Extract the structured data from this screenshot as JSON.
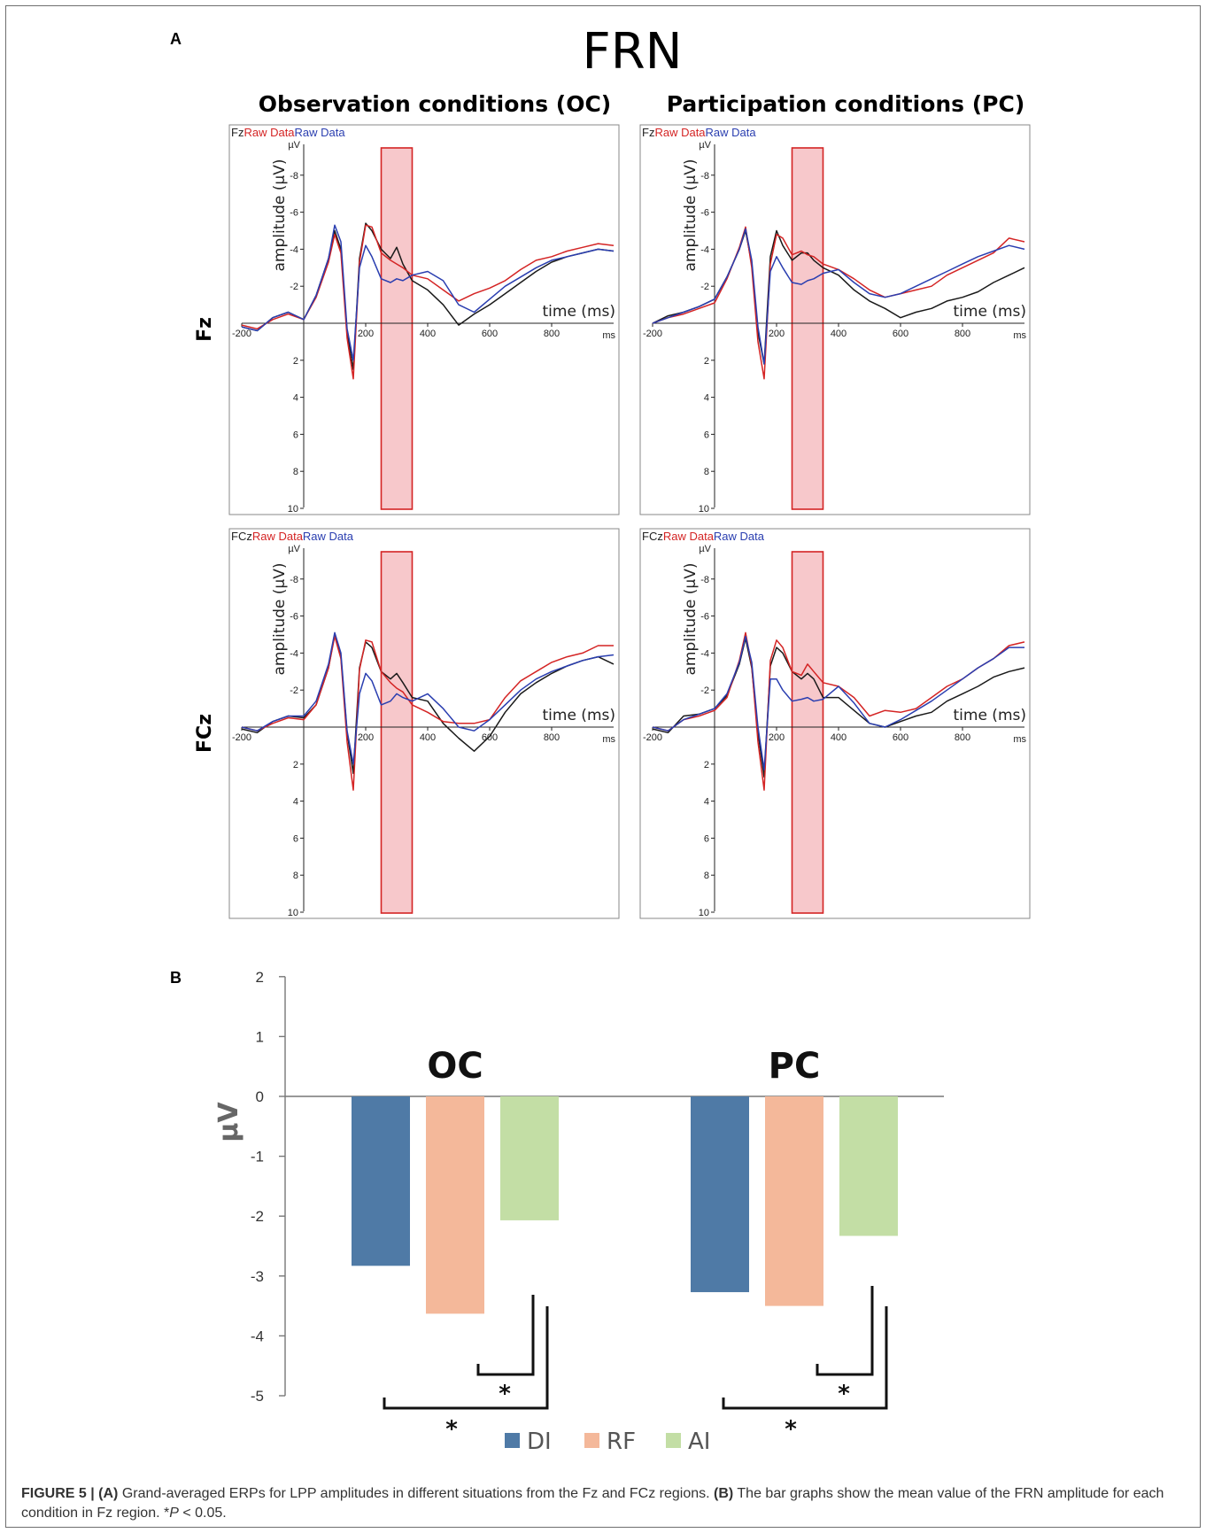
{
  "panel_a_label": "A",
  "panel_b_label": "B",
  "figure_title": "FRN",
  "columns": [
    "Observation conditions (OC)",
    "Participation conditions (PC)"
  ],
  "rows": [
    "Fz",
    "FCz"
  ],
  "caption": {
    "figure_label": "FIGURE 5 |",
    "panel_a": "(A)",
    "text_a": "Grand-averaged ERPs for LPP amplitudes in different situations from the Fz and FCz regions.",
    "panel_b": "(B)",
    "text_b": "The bar graphs show the mean value of the FRN amplitude for each condition in Fz region. *",
    "p_symbol": "P",
    "p_text": "< 0.05."
  },
  "colors": {
    "DI": "#4f7aa6",
    "RF": "#f4b89a",
    "AI": "#c3deA5",
    "erp_black": "#1a1a1a",
    "erp_red": "#d42424",
    "erp_blue": "#2a3eb0",
    "window_fill": "#f7c8cb",
    "window_stroke": "#d42424"
  },
  "chart_data": [
    {
      "type": "line",
      "panel": "A-Fz-OC",
      "header": {
        "channel": "Fz",
        "series_a": "Raw Data",
        "series_b": "Raw Data"
      },
      "y_unit": "µV",
      "ylabel": "amplitude (µV)",
      "xlabel": "time (ms)",
      "x_unit": "ms",
      "x_ticks": [
        -200,
        200,
        400,
        600,
        800
      ],
      "y_ticks": [
        -8,
        -6,
        -4,
        -2,
        2,
        4,
        6,
        8,
        10
      ],
      "xlim": [
        -200,
        1000
      ],
      "ylim": [
        -10,
        10
      ],
      "y_inverted": true,
      "highlight_window": [
        250,
        350
      ],
      "series": [
        {
          "color_key": "erp_black",
          "x": [
            -200,
            -150,
            -100,
            -50,
            0,
            40,
            80,
            100,
            120,
            140,
            160,
            180,
            200,
            220,
            250,
            280,
            300,
            320,
            350,
            400,
            450,
            500,
            550,
            600,
            650,
            700,
            750,
            800,
            850,
            900,
            950,
            1000
          ],
          "y": [
            0.2,
            0.4,
            -0.3,
            -0.6,
            -0.2,
            -1.5,
            -3.5,
            -5.0,
            -4.0,
            0.5,
            2.5,
            -3.5,
            -5.4,
            -5.0,
            -4.0,
            -3.5,
            -4.1,
            -3.2,
            -2.3,
            -1.8,
            -1.0,
            0.1,
            -0.5,
            -1.0,
            -1.6,
            -2.2,
            -2.8,
            -3.3,
            -3.6,
            -3.8,
            -4.0,
            -3.9
          ]
        },
        {
          "color_key": "erp_red",
          "x": [
            -200,
            -150,
            -100,
            -50,
            0,
            40,
            80,
            100,
            120,
            140,
            160,
            180,
            200,
            220,
            250,
            280,
            300,
            320,
            350,
            400,
            450,
            500,
            550,
            600,
            650,
            700,
            750,
            800,
            850,
            900,
            950,
            1000
          ],
          "y": [
            0.1,
            0.3,
            -0.2,
            -0.5,
            -0.2,
            -1.4,
            -3.3,
            -4.8,
            -3.8,
            0.8,
            3.0,
            -3.3,
            -5.3,
            -5.2,
            -3.8,
            -3.4,
            -3.2,
            -3.0,
            -2.6,
            -2.4,
            -1.8,
            -1.2,
            -1.6,
            -1.9,
            -2.3,
            -2.9,
            -3.4,
            -3.6,
            -3.9,
            -4.1,
            -4.3,
            -4.2
          ]
        },
        {
          "color_key": "erp_blue",
          "x": [
            -200,
            -150,
            -100,
            -50,
            0,
            40,
            80,
            100,
            120,
            140,
            160,
            180,
            200,
            220,
            250,
            280,
            300,
            320,
            350,
            400,
            450,
            500,
            550,
            600,
            650,
            700,
            750,
            800,
            850,
            900,
            950,
            1000
          ],
          "y": [
            0.2,
            0.4,
            -0.3,
            -0.6,
            -0.2,
            -1.5,
            -3.5,
            -5.3,
            -4.4,
            0.3,
            2.0,
            -3.0,
            -4.2,
            -3.6,
            -2.4,
            -2.2,
            -2.4,
            -2.3,
            -2.6,
            -2.8,
            -2.3,
            -1.0,
            -0.6,
            -1.3,
            -2.0,
            -2.5,
            -3.0,
            -3.4,
            -3.6,
            -3.8,
            -4.0,
            -3.9
          ]
        }
      ]
    },
    {
      "type": "line",
      "panel": "A-Fz-PC",
      "header": {
        "channel": "Fz",
        "series_a": "Raw Data",
        "series_b": "Raw Data"
      },
      "y_unit": "µV",
      "ylabel": "amplitude (µV)",
      "xlabel": "time (ms)",
      "x_unit": "ms",
      "x_ticks": [
        -200,
        200,
        400,
        600,
        800
      ],
      "y_ticks": [
        -8,
        -6,
        -4,
        -2,
        2,
        4,
        6,
        8,
        10
      ],
      "xlim": [
        -200,
        1000
      ],
      "ylim": [
        -10,
        10
      ],
      "y_inverted": true,
      "highlight_window": [
        250,
        350
      ],
      "series": [
        {
          "color_key": "erp_black",
          "x": [
            -200,
            -150,
            -100,
            -50,
            0,
            40,
            80,
            100,
            120,
            140,
            160,
            180,
            200,
            220,
            250,
            280,
            300,
            320,
            350,
            400,
            450,
            500,
            550,
            600,
            650,
            700,
            750,
            800,
            850,
            900,
            950,
            1000
          ],
          "y": [
            0.0,
            -0.4,
            -0.6,
            -0.9,
            -1.3,
            -2.5,
            -4.0,
            -5.0,
            -3.2,
            0.5,
            2.2,
            -3.6,
            -5.0,
            -4.2,
            -3.4,
            -3.8,
            -3.8,
            -3.4,
            -3.0,
            -2.6,
            -1.8,
            -1.2,
            -0.8,
            -0.3,
            -0.6,
            -0.8,
            -1.2,
            -1.4,
            -1.7,
            -2.2,
            -2.6,
            -3.0
          ]
        },
        {
          "color_key": "erp_red",
          "x": [
            -200,
            -150,
            -100,
            -50,
            0,
            40,
            80,
            100,
            120,
            140,
            160,
            180,
            200,
            220,
            250,
            280,
            300,
            320,
            350,
            400,
            450,
            500,
            550,
            600,
            650,
            700,
            750,
            800,
            850,
            900,
            950,
            1000
          ],
          "y": [
            0.0,
            -0.3,
            -0.5,
            -0.8,
            -1.1,
            -2.4,
            -4.1,
            -5.2,
            -3.0,
            1.0,
            3.0,
            -3.2,
            -4.8,
            -4.6,
            -3.7,
            -3.9,
            -3.7,
            -3.6,
            -3.2,
            -2.9,
            -2.4,
            -1.8,
            -1.4,
            -1.6,
            -1.8,
            -2.0,
            -2.6,
            -3.0,
            -3.4,
            -3.8,
            -4.6,
            -4.4
          ]
        },
        {
          "color_key": "erp_blue",
          "x": [
            -200,
            -150,
            -100,
            -50,
            0,
            40,
            80,
            100,
            120,
            140,
            160,
            180,
            200,
            220,
            250,
            280,
            300,
            320,
            350,
            400,
            450,
            500,
            550,
            600,
            650,
            700,
            750,
            800,
            850,
            900,
            950,
            1000
          ],
          "y": [
            0.0,
            -0.3,
            -0.6,
            -0.9,
            -1.3,
            -2.5,
            -4.0,
            -5.1,
            -3.4,
            0.2,
            2.2,
            -2.8,
            -3.6,
            -3.0,
            -2.2,
            -2.1,
            -2.3,
            -2.4,
            -2.7,
            -2.9,
            -2.2,
            -1.6,
            -1.4,
            -1.6,
            -2.0,
            -2.4,
            -2.8,
            -3.2,
            -3.6,
            -3.9,
            -4.2,
            -4.0
          ]
        }
      ]
    },
    {
      "type": "line",
      "panel": "A-FCz-OC",
      "header": {
        "channel": "FCz",
        "series_a": "Raw Data",
        "series_b": "Raw Data"
      },
      "y_unit": "µV",
      "ylabel": "amplitude (µV)",
      "xlabel": "time (ms)",
      "x_unit": "ms",
      "x_ticks": [
        -200,
        200,
        400,
        600,
        800
      ],
      "y_ticks": [
        -8,
        -6,
        -4,
        -2,
        2,
        4,
        6,
        8,
        10
      ],
      "xlim": [
        -200,
        1000
      ],
      "ylim": [
        -10,
        10
      ],
      "y_inverted": true,
      "highlight_window": [
        250,
        350
      ],
      "series": [
        {
          "color_key": "erp_black",
          "x": [
            -200,
            -150,
            -100,
            -50,
            0,
            40,
            80,
            100,
            120,
            140,
            160,
            180,
            200,
            220,
            250,
            280,
            300,
            320,
            350,
            400,
            450,
            500,
            550,
            600,
            650,
            700,
            750,
            800,
            850,
            900,
            950,
            1000
          ],
          "y": [
            0.1,
            0.3,
            -0.3,
            -0.6,
            -0.5,
            -1.2,
            -3.2,
            -5.0,
            -3.8,
            0.3,
            2.5,
            -3.2,
            -4.6,
            -4.3,
            -3.0,
            -2.6,
            -2.9,
            -2.4,
            -1.6,
            -1.4,
            -0.2,
            0.6,
            1.3,
            0.5,
            -0.8,
            -1.8,
            -2.4,
            -2.9,
            -3.3,
            -3.6,
            -3.8,
            -3.4
          ]
        },
        {
          "color_key": "erp_red",
          "x": [
            -200,
            -150,
            -100,
            -50,
            0,
            40,
            80,
            100,
            120,
            140,
            160,
            180,
            200,
            220,
            250,
            280,
            300,
            320,
            350,
            400,
            450,
            500,
            550,
            600,
            650,
            700,
            750,
            800,
            850,
            900,
            950,
            1000
          ],
          "y": [
            0.0,
            0.2,
            -0.2,
            -0.5,
            -0.4,
            -1.2,
            -3.2,
            -4.9,
            -3.7,
            0.8,
            3.4,
            -3.1,
            -4.7,
            -4.6,
            -3.0,
            -2.4,
            -2.1,
            -1.9,
            -1.2,
            -0.8,
            -0.3,
            -0.2,
            -0.2,
            -0.4,
            -1.6,
            -2.5,
            -3.0,
            -3.5,
            -3.8,
            -4.0,
            -4.4,
            -4.4
          ]
        },
        {
          "color_key": "erp_blue",
          "x": [
            -200,
            -150,
            -100,
            -50,
            0,
            40,
            80,
            100,
            120,
            140,
            160,
            180,
            200,
            220,
            250,
            280,
            300,
            320,
            350,
            400,
            450,
            500,
            550,
            600,
            650,
            700,
            750,
            800,
            850,
            900,
            950,
            1000
          ],
          "y": [
            0.0,
            0.2,
            -0.3,
            -0.6,
            -0.6,
            -1.4,
            -3.4,
            -5.1,
            -4.0,
            0.2,
            2.0,
            -1.8,
            -2.9,
            -2.5,
            -1.2,
            -1.4,
            -1.8,
            -1.6,
            -1.4,
            -1.8,
            -1.0,
            0.0,
            0.2,
            -0.4,
            -1.2,
            -2.0,
            -2.6,
            -3.0,
            -3.3,
            -3.6,
            -3.8,
            -3.9
          ]
        }
      ]
    },
    {
      "type": "line",
      "panel": "A-FCz-PC",
      "header": {
        "channel": "FCz",
        "series_a": "Raw Data",
        "series_b": "Raw Data"
      },
      "y_unit": "µV",
      "ylabel": "amplitude (µV)",
      "xlabel": "time (ms)",
      "x_unit": "ms",
      "x_ticks": [
        -200,
        200,
        400,
        600,
        800
      ],
      "y_ticks": [
        -8,
        -6,
        -4,
        -2,
        2,
        4,
        6,
        8,
        10
      ],
      "xlim": [
        -200,
        1000
      ],
      "ylim": [
        -10,
        10
      ],
      "y_inverted": true,
      "highlight_window": [
        250,
        350
      ],
      "series": [
        {
          "color_key": "erp_black",
          "x": [
            -200,
            -150,
            -100,
            -50,
            0,
            40,
            80,
            100,
            120,
            140,
            160,
            180,
            200,
            220,
            250,
            280,
            300,
            320,
            350,
            400,
            450,
            500,
            550,
            600,
            650,
            700,
            750,
            800,
            850,
            900,
            950,
            1000
          ],
          "y": [
            0.1,
            0.3,
            -0.6,
            -0.7,
            -1.0,
            -1.7,
            -3.4,
            -4.8,
            -3.2,
            0.3,
            2.7,
            -3.3,
            -4.3,
            -4.0,
            -3.0,
            -2.6,
            -2.9,
            -2.6,
            -1.6,
            -1.6,
            -0.9,
            -0.2,
            0.0,
            -0.3,
            -0.6,
            -0.8,
            -1.4,
            -1.8,
            -2.2,
            -2.7,
            -3.0,
            -3.2
          ]
        },
        {
          "color_key": "erp_red",
          "x": [
            -200,
            -150,
            -100,
            -50,
            0,
            40,
            80,
            100,
            120,
            140,
            160,
            180,
            200,
            220,
            250,
            280,
            300,
            320,
            350,
            400,
            450,
            500,
            550,
            600,
            650,
            700,
            750,
            800,
            850,
            900,
            950,
            1000
          ],
          "y": [
            0.0,
            0.2,
            -0.4,
            -0.6,
            -0.9,
            -1.6,
            -3.6,
            -5.1,
            -3.3,
            0.8,
            3.4,
            -3.6,
            -4.7,
            -4.3,
            -3.0,
            -2.8,
            -3.4,
            -3.0,
            -2.4,
            -2.2,
            -1.6,
            -0.6,
            -0.9,
            -0.8,
            -1.0,
            -1.6,
            -2.2,
            -2.6,
            -3.2,
            -3.7,
            -4.4,
            -4.6
          ]
        },
        {
          "color_key": "erp_blue",
          "x": [
            -200,
            -150,
            -100,
            -50,
            0,
            40,
            80,
            100,
            120,
            140,
            160,
            180,
            200,
            220,
            250,
            280,
            300,
            320,
            350,
            400,
            450,
            500,
            550,
            600,
            650,
            700,
            750,
            800,
            850,
            900,
            950,
            1000
          ],
          "y": [
            0.0,
            0.2,
            -0.4,
            -0.7,
            -1.0,
            -1.8,
            -3.5,
            -4.9,
            -3.5,
            0.0,
            2.3,
            -2.6,
            -2.6,
            -2.0,
            -1.4,
            -1.5,
            -1.6,
            -1.4,
            -1.5,
            -2.2,
            -1.3,
            -0.2,
            0.0,
            -0.4,
            -0.9,
            -1.4,
            -2.0,
            -2.6,
            -3.2,
            -3.7,
            -4.3,
            -4.3
          ]
        }
      ]
    },
    {
      "type": "bar",
      "panel": "B",
      "groups": [
        "OC",
        "PC"
      ],
      "ylabel": "µV",
      "ylim": [
        -5,
        2
      ],
      "y_ticks": [
        2,
        1,
        0,
        -1,
        -2,
        -3,
        -4,
        -5
      ],
      "series": [
        {
          "name": "DI",
          "values": [
            -2.83,
            -3.27
          ]
        },
        {
          "name": "RF",
          "values": [
            -3.63,
            -3.5
          ]
        },
        {
          "name": "AI",
          "values": [
            -2.07,
            -2.33
          ]
        }
      ],
      "significance": [
        {
          "group": "OC",
          "pair": [
            "RF",
            "AI"
          ],
          "label": "*"
        },
        {
          "group": "OC",
          "pair": [
            "DI",
            "AI"
          ],
          "label": "*"
        },
        {
          "group": "PC",
          "pair": [
            "RF",
            "AI"
          ],
          "label": "*"
        },
        {
          "group": "PC",
          "pair": [
            "DI",
            "AI"
          ],
          "label": "*"
        }
      ]
    }
  ]
}
